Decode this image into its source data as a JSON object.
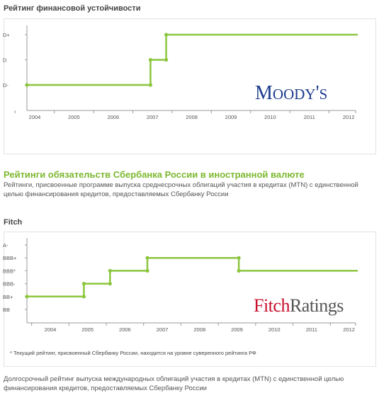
{
  "chart_data": [
    {
      "type": "line",
      "title": "Рейтинг финансовой устойчивости",
      "x_ticks": [
        "2004",
        "2005",
        "2006",
        "2007",
        "2008",
        "2009",
        "2010",
        "2011",
        "2012"
      ],
      "y_categories": [
        "D-",
        "D",
        "D+"
      ],
      "xlim": [
        2003.5,
        2012.3
      ],
      "series": [
        {
          "x": [
            2003.5,
            2006.95,
            2006.95,
            2007.35,
            2007.35,
            2012.4
          ],
          "y": [
            "D-",
            "D-",
            "D",
            "D",
            "D+",
            "D+"
          ]
        }
      ],
      "logo_text": "Moody's",
      "grid": false
    },
    {
      "type": "line",
      "title": "Fitch",
      "x_ticks": [
        "2004",
        "2005",
        "2006",
        "2007",
        "2008",
        "2009",
        "2010",
        "2011",
        "2012"
      ],
      "y_categories": [
        "BB",
        "BB+",
        "BBB-",
        "BBB*",
        "BBB+",
        "A-"
      ],
      "xlim": [
        2003.25,
        2012.3
      ],
      "series": [
        {
          "x": [
            2003.25,
            2004.9,
            2004.9,
            2005.6,
            2005.6,
            2006.6,
            2006.6,
            2009.05,
            2009.05,
            2012.4
          ],
          "y": [
            "BB+",
            "BB+",
            "BBB-",
            "BBB-",
            "BBB*",
            "BBB*",
            "BBB+",
            "BBB+",
            "BBB*",
            "BBB*"
          ]
        }
      ],
      "logo_text": [
        "Fitch",
        "Ratings"
      ],
      "grid": false
    }
  ],
  "heading": "Рейтинги обязательств Сбербанка России в иностранной валюте",
  "description_1": "Рейтинги, присвоенные программе выпуска среднесрочных облигаций участия в кредитах (MTN) с единственной целью финансирования кредитов, предоставляемых Сбербанку России",
  "footnote": "* Текущий рейтинг, присвоенный Сбербанку России, находится на уровне суверенного рейтинга РФ",
  "description_2": "Долгосрочный рейтинг выпуска международных облигаций участия в кредитах (MTN) с единственной целью финансирования кредитов, предоставляемых Сбербанку России",
  "colors": {
    "line": "#8cc63f",
    "axis": "#999999",
    "heading": "#7cb82f",
    "moodys": "#1b3a8f",
    "fitch_red": "#c8102e"
  }
}
